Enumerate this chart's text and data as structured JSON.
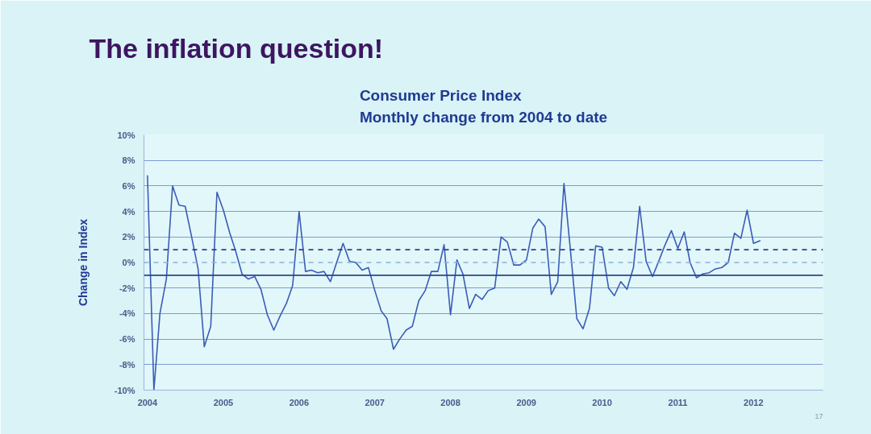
{
  "chart_data": {
    "type": "line",
    "title": "The inflation question!",
    "subtitle": "Consumer Price Index\nMonthly change from 2004 to date",
    "ylabel": "Change in Index",
    "x": [
      "2004-01",
      "2004-02",
      "2004-03",
      "2004-04",
      "2004-05",
      "2004-06",
      "2004-07",
      "2004-08",
      "2004-09",
      "2004-10",
      "2004-11",
      "2004-12",
      "2005-01",
      "2005-02",
      "2005-03",
      "2005-04",
      "2005-05",
      "2005-06",
      "2005-07",
      "2005-08",
      "2005-09",
      "2005-10",
      "2005-11",
      "2005-12",
      "2006-01",
      "2006-02",
      "2006-03",
      "2006-04",
      "2006-05",
      "2006-06",
      "2006-07",
      "2006-08",
      "2006-09",
      "2006-10",
      "2006-11",
      "2006-12",
      "2007-01",
      "2007-02",
      "2007-03",
      "2007-04",
      "2007-05",
      "2007-06",
      "2007-07",
      "2007-08",
      "2007-09",
      "2007-10",
      "2007-11",
      "2007-12",
      "2008-01",
      "2008-02",
      "2008-03",
      "2008-04",
      "2008-05",
      "2008-06",
      "2008-07",
      "2008-08",
      "2008-09",
      "2008-10",
      "2008-11",
      "2008-12",
      "2009-01",
      "2009-02",
      "2009-03",
      "2009-04",
      "2009-05",
      "2009-06",
      "2009-07",
      "2009-08",
      "2009-09",
      "2009-10",
      "2009-11",
      "2009-12",
      "2010-01",
      "2010-02",
      "2010-03",
      "2010-04",
      "2010-05",
      "2010-06",
      "2010-07",
      "2010-08",
      "2010-09",
      "2010-10",
      "2010-11",
      "2010-12",
      "2011-01",
      "2011-02",
      "2011-03",
      "2011-04",
      "2011-05",
      "2011-06",
      "2011-07",
      "2011-08",
      "2011-09",
      "2011-10",
      "2011-11",
      "2011-12",
      "2012-01",
      "2012-02"
    ],
    "series": [
      {
        "color": "#3b5cb8",
        "values": [
          6.8,
          -10.0,
          -4.0,
          -1.3,
          6.0,
          4.5,
          4.4,
          2.0,
          -0.5,
          -6.6,
          -5.0,
          5.5,
          4.1,
          2.3,
          0.9,
          -0.9,
          -1.3,
          -1.1,
          -2.1,
          -4.1,
          -5.3,
          -4.2,
          -3.2,
          -1.8,
          4.0,
          -0.7,
          -0.6,
          -0.8,
          -0.7,
          -1.5,
          0.0,
          1.5,
          0.1,
          0.0,
          -0.6,
          -0.4,
          -2.2,
          -3.8,
          -4.4,
          -6.8,
          -6.0,
          -5.3,
          -5.0,
          -3.0,
          -2.2,
          -0.7,
          -0.7,
          1.4,
          -4.1,
          0.2,
          -0.9,
          -3.6,
          -2.5,
          -2.9,
          -2.2,
          -2.0,
          2.0,
          1.6,
          -0.2,
          -0.2,
          0.2,
          2.7,
          3.4,
          2.8,
          -2.5,
          -1.5,
          6.2,
          1.0,
          -4.4,
          -5.2,
          -3.6,
          1.3,
          1.2,
          -2.0,
          -2.6,
          -1.5,
          -2.1,
          -0.4,
          4.4,
          0.1,
          -1.1,
          0.1,
          1.4,
          2.5,
          1.1,
          2.4,
          0.0,
          -1.2,
          -0.9,
          -0.8,
          -0.5,
          -0.4,
          0.0,
          2.3,
          1.9,
          4.1,
          1.5,
          1.7
        ]
      }
    ],
    "xlim": [
      "2003-12-15",
      "2012-12"
    ],
    "xticks": [
      {
        "value": "2004-01",
        "label": "2004"
      },
      {
        "value": "2005-01",
        "label": "2005"
      },
      {
        "value": "2006-01",
        "label": "2006"
      },
      {
        "value": "2007-01",
        "label": "2007"
      },
      {
        "value": "2008-01",
        "label": "2008"
      },
      {
        "value": "2009-01",
        "label": "2009"
      },
      {
        "value": "2010-01",
        "label": "2010"
      },
      {
        "value": "2011-01",
        "label": "2011"
      },
      {
        "value": "2012-01",
        "label": "2012"
      }
    ],
    "ylim": [
      -10,
      10
    ],
    "yticks": [
      {
        "value": -10,
        "label": "-10%"
      },
      {
        "value": -8,
        "label": "-8%"
      },
      {
        "value": -6,
        "label": "-6%"
      },
      {
        "value": -4,
        "label": "-4%"
      },
      {
        "value": -2,
        "label": "-2%"
      },
      {
        "value": 0,
        "label": "0%"
      },
      {
        "value": 2,
        "label": "2%"
      },
      {
        "value": 4,
        "label": "4%"
      },
      {
        "value": 6,
        "label": "6%"
      },
      {
        "value": 8,
        "label": "8%"
      },
      {
        "value": 10,
        "label": "10%"
      }
    ],
    "ref_lines": [
      {
        "axis": "y",
        "value": 1,
        "color": "#2a438f",
        "line_style": "dashed"
      },
      {
        "axis": "y",
        "value": 0,
        "color": "#8fb0e0",
        "line_style": "dashed"
      },
      {
        "axis": "y",
        "value": -1,
        "color": "#2a438f",
        "line_style": "solid"
      }
    ],
    "grid": "y",
    "annotations": [
      "17"
    ]
  }
}
